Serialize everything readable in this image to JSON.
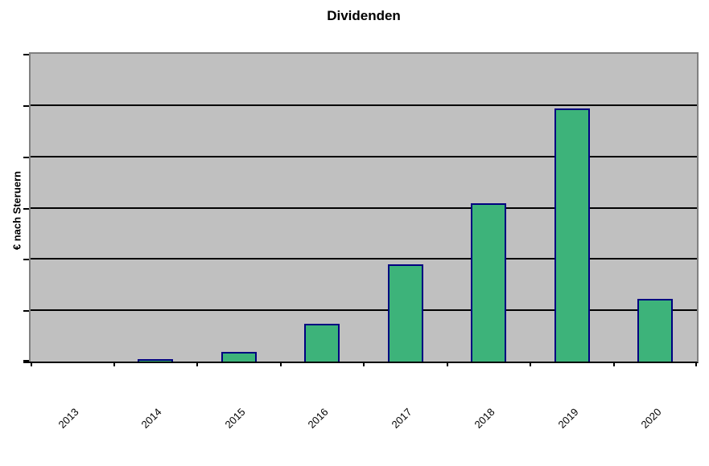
{
  "page": {
    "background": "#FFFFFF"
  },
  "chart_data": {
    "type": "bar",
    "title": "Dividenden",
    "categories": [
      "2013",
      "2014",
      "2015",
      "2016",
      "2017",
      "2018",
      "2019",
      "2020"
    ],
    "values": [
      0,
      0.05,
      0.19,
      0.73,
      1.9,
      3.08,
      4.93,
      1.22
    ],
    "xlabel": "",
    "ylabel": "€ nach Steruern",
    "ylim": [
      0,
      6
    ],
    "grid_divisions": 6,
    "gridlines": "horizontal-major",
    "y_tick_labels_visible": false,
    "x_label_rotation_deg": 45,
    "legend": "none",
    "colors": {
      "bar_fill": "#3DB37A",
      "bar_border": "#000080",
      "plot_background": "#C0C0C0",
      "plot_border": "#808080",
      "gridline": "#000000",
      "axis_line": "#000000",
      "text": "#000000",
      "page_background": "#FFFFFF"
    }
  }
}
